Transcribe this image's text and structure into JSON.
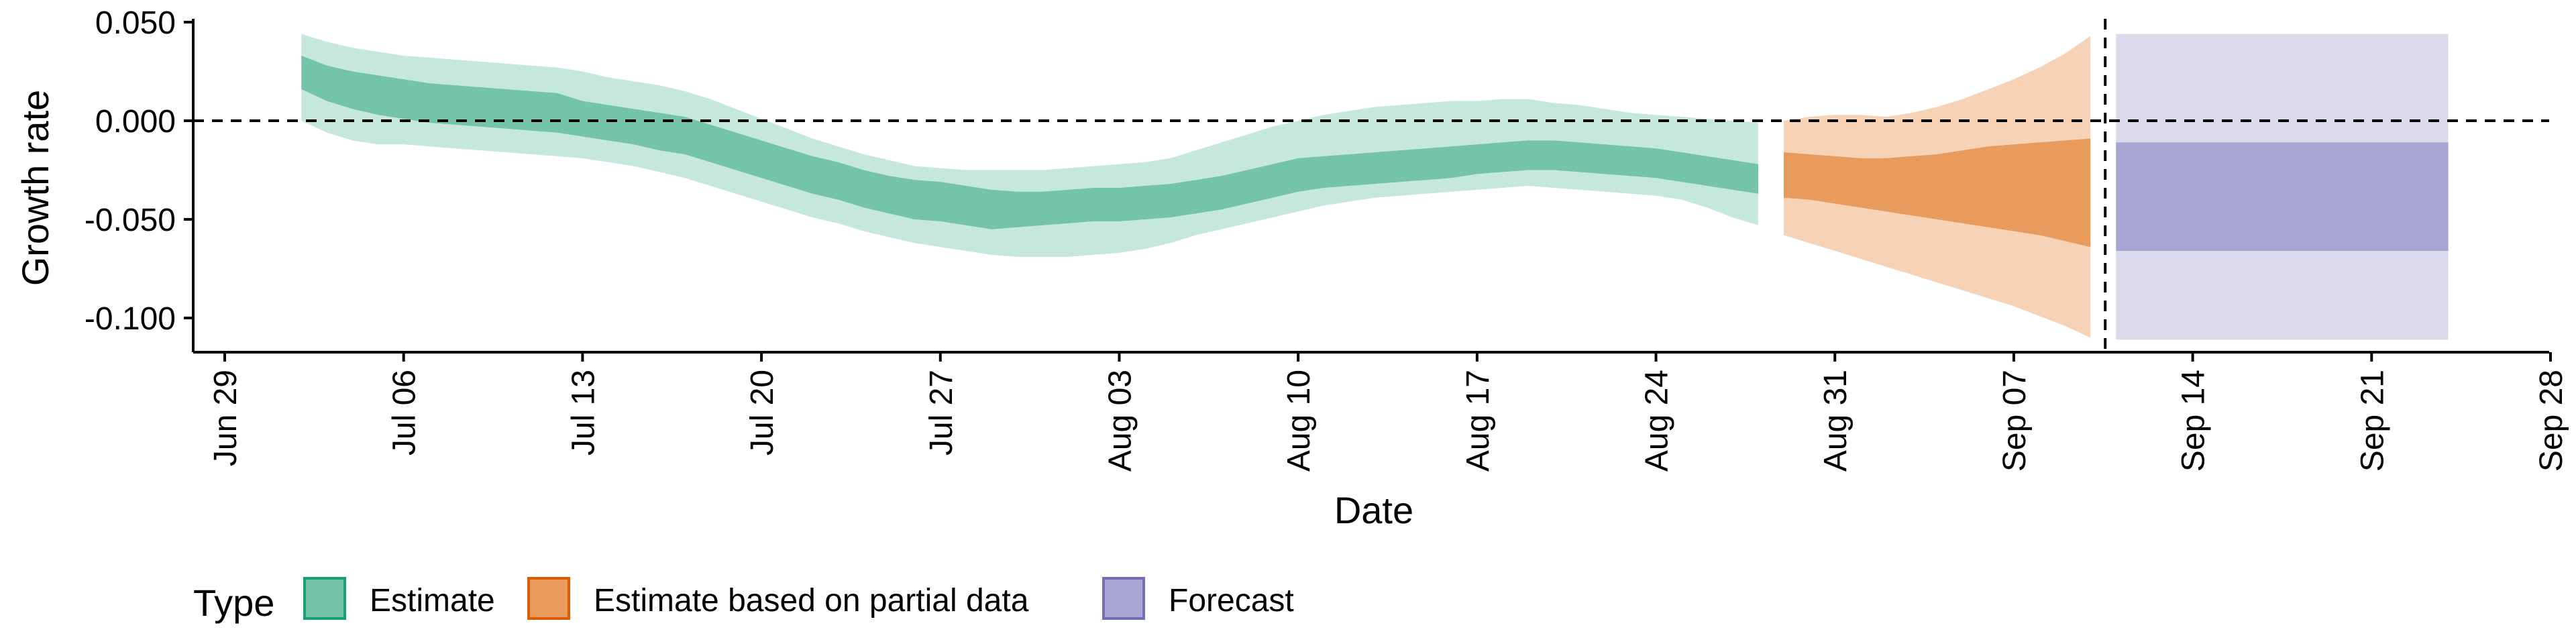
{
  "chart_data": {
    "type": "area",
    "xlabel": "Date",
    "ylabel": "Growth rate",
    "x_axis": {
      "start_date": "2020-06-29",
      "end_date": "2020-09-28",
      "tick_dates": [
        "2020-06-29",
        "2020-07-06",
        "2020-07-13",
        "2020-07-20",
        "2020-07-27",
        "2020-08-03",
        "2020-08-10",
        "2020-08-17",
        "2020-08-24",
        "2020-08-31",
        "2020-09-07",
        "2020-09-14",
        "2020-09-21",
        "2020-09-28"
      ],
      "tick_labels": [
        "Jun 29",
        "Jul 06",
        "Jul 13",
        "Jul 20",
        "Jul 27",
        "Aug 03",
        "Aug 10",
        "Aug 17",
        "Aug 24",
        "Aug 31",
        "Sep 07",
        "Sep 14",
        "Sep 21",
        "Sep 28"
      ]
    },
    "y_axis": {
      "range": [
        -0.118,
        0.05
      ],
      "ticks": [
        0.05,
        0.0,
        -0.05,
        -0.1
      ],
      "tick_labels": [
        "0.050",
        "0.000",
        "-0.050",
        "-0.100"
      ]
    },
    "reference_lines": [
      {
        "orientation": "horizontal",
        "y": 0.0,
        "style": "dashed"
      },
      {
        "orientation": "vertical",
        "x": "2020-09-10",
        "style": "dashed"
      }
    ],
    "grid": false,
    "legend": {
      "position": "bottom-left",
      "title": "Type",
      "entries": [
        "Estimate",
        "Estimate based on partial data",
        "Forecast"
      ]
    },
    "series": [
      {
        "name": "Estimate",
        "color": "#1b9e77",
        "x": [
          "2020-07-02",
          "2020-07-03",
          "2020-07-04",
          "2020-07-05",
          "2020-07-06",
          "2020-07-07",
          "2020-07-08",
          "2020-07-09",
          "2020-07-10",
          "2020-07-11",
          "2020-07-12",
          "2020-07-13",
          "2020-07-14",
          "2020-07-15",
          "2020-07-16",
          "2020-07-17",
          "2020-07-18",
          "2020-07-19",
          "2020-07-20",
          "2020-07-21",
          "2020-07-22",
          "2020-07-23",
          "2020-07-24",
          "2020-07-25",
          "2020-07-26",
          "2020-07-27",
          "2020-07-28",
          "2020-07-29",
          "2020-07-30",
          "2020-07-31",
          "2020-08-01",
          "2020-08-02",
          "2020-08-03",
          "2020-08-04",
          "2020-08-05",
          "2020-08-06",
          "2020-08-07",
          "2020-08-08",
          "2020-08-09",
          "2020-08-10",
          "2020-08-11",
          "2020-08-12",
          "2020-08-13",
          "2020-08-14",
          "2020-08-15",
          "2020-08-16",
          "2020-08-17",
          "2020-08-18",
          "2020-08-19",
          "2020-08-20",
          "2020-08-21",
          "2020-08-22",
          "2020-08-23",
          "2020-08-24",
          "2020-08-25",
          "2020-08-26",
          "2020-08-27",
          "2020-08-28"
        ],
        "median": [
          0.026,
          0.02,
          0.016,
          0.013,
          0.011,
          0.009,
          0.008,
          0.007,
          0.006,
          0.005,
          0.004,
          0.002,
          0.0,
          -0.002,
          -0.005,
          -0.007,
          -0.011,
          -0.015,
          -0.019,
          -0.023,
          -0.027,
          -0.03,
          -0.034,
          -0.037,
          -0.04,
          -0.041,
          -0.043,
          -0.045,
          -0.047,
          -0.046,
          -0.045,
          -0.044,
          -0.044,
          -0.043,
          -0.042,
          -0.04,
          -0.038,
          -0.035,
          -0.032,
          -0.029,
          -0.027,
          -0.026,
          -0.025,
          -0.024,
          -0.023,
          -0.022,
          -0.02,
          -0.019,
          -0.018,
          -0.018,
          -0.019,
          -0.02,
          -0.021,
          -0.022,
          -0.024,
          -0.026,
          -0.028,
          -0.03
        ],
        "inner_lower": [
          0.016,
          0.01,
          0.006,
          0.003,
          0.001,
          -0.001,
          -0.002,
          -0.003,
          -0.004,
          -0.005,
          -0.006,
          -0.008,
          -0.01,
          -0.012,
          -0.015,
          -0.017,
          -0.021,
          -0.025,
          -0.029,
          -0.033,
          -0.037,
          -0.04,
          -0.044,
          -0.047,
          -0.05,
          -0.051,
          -0.053,
          -0.055,
          -0.054,
          -0.053,
          -0.052,
          -0.051,
          -0.051,
          -0.05,
          -0.049,
          -0.047,
          -0.045,
          -0.042,
          -0.039,
          -0.036,
          -0.034,
          -0.033,
          -0.032,
          -0.031,
          -0.03,
          -0.029,
          -0.027,
          -0.026,
          -0.025,
          -0.025,
          -0.026,
          -0.027,
          -0.028,
          -0.029,
          -0.031,
          -0.033,
          -0.035,
          -0.037
        ],
        "inner_upper": [
          0.033,
          0.028,
          0.025,
          0.023,
          0.021,
          0.019,
          0.018,
          0.017,
          0.016,
          0.015,
          0.014,
          0.01,
          0.008,
          0.006,
          0.004,
          0.002,
          -0.002,
          -0.006,
          -0.01,
          -0.014,
          -0.018,
          -0.021,
          -0.025,
          -0.028,
          -0.03,
          -0.031,
          -0.033,
          -0.035,
          -0.036,
          -0.036,
          -0.035,
          -0.034,
          -0.034,
          -0.033,
          -0.032,
          -0.03,
          -0.028,
          -0.025,
          -0.022,
          -0.019,
          -0.018,
          -0.017,
          -0.016,
          -0.015,
          -0.014,
          -0.013,
          -0.012,
          -0.011,
          -0.01,
          -0.01,
          -0.011,
          -0.012,
          -0.013,
          -0.014,
          -0.016,
          -0.018,
          -0.02,
          -0.022
        ],
        "outer_lower": [
          0.0,
          -0.006,
          -0.01,
          -0.012,
          -0.012,
          -0.013,
          -0.014,
          -0.015,
          -0.016,
          -0.017,
          -0.018,
          -0.019,
          -0.021,
          -0.023,
          -0.026,
          -0.029,
          -0.033,
          -0.037,
          -0.041,
          -0.045,
          -0.049,
          -0.052,
          -0.056,
          -0.059,
          -0.062,
          -0.064,
          -0.066,
          -0.068,
          -0.069,
          -0.069,
          -0.069,
          -0.068,
          -0.067,
          -0.065,
          -0.062,
          -0.058,
          -0.055,
          -0.052,
          -0.049,
          -0.046,
          -0.043,
          -0.041,
          -0.039,
          -0.038,
          -0.037,
          -0.036,
          -0.035,
          -0.034,
          -0.033,
          -0.034,
          -0.035,
          -0.036,
          -0.037,
          -0.038,
          -0.04,
          -0.044,
          -0.049,
          -0.053
        ],
        "outer_upper": [
          0.044,
          0.04,
          0.037,
          0.035,
          0.033,
          0.032,
          0.031,
          0.03,
          0.029,
          0.028,
          0.027,
          0.025,
          0.022,
          0.02,
          0.018,
          0.015,
          0.011,
          0.006,
          0.001,
          -0.004,
          -0.009,
          -0.013,
          -0.017,
          -0.02,
          -0.023,
          -0.024,
          -0.025,
          -0.025,
          -0.025,
          -0.025,
          -0.024,
          -0.023,
          -0.022,
          -0.021,
          -0.019,
          -0.015,
          -0.011,
          -0.007,
          -0.003,
          0.0,
          0.003,
          0.005,
          0.007,
          0.008,
          0.009,
          0.01,
          0.01,
          0.011,
          0.011,
          0.009,
          0.008,
          0.006,
          0.004,
          0.003,
          0.002,
          0.001,
          0.0,
          -0.001
        ]
      },
      {
        "name": "Estimate based on partial data",
        "color": "#d95f02",
        "x": [
          "2020-08-29",
          "2020-08-30",
          "2020-08-31",
          "2020-09-01",
          "2020-09-02",
          "2020-09-03",
          "2020-09-04",
          "2020-09-05",
          "2020-09-06",
          "2020-09-07",
          "2020-09-08",
          "2020-09-09",
          "2020-09-10"
        ],
        "median": [
          -0.031,
          -0.032,
          -0.033,
          -0.034,
          -0.035,
          -0.036,
          -0.037,
          -0.038,
          -0.039,
          -0.04,
          -0.041,
          -0.042,
          -0.043
        ],
        "inner_lower": [
          -0.039,
          -0.04,
          -0.042,
          -0.044,
          -0.046,
          -0.048,
          -0.05,
          -0.052,
          -0.054,
          -0.056,
          -0.058,
          -0.061,
          -0.064
        ],
        "inner_upper": [
          -0.016,
          -0.017,
          -0.018,
          -0.019,
          -0.019,
          -0.018,
          -0.017,
          -0.015,
          -0.013,
          -0.012,
          -0.011,
          -0.01,
          -0.009
        ],
        "outer_lower": [
          -0.058,
          -0.062,
          -0.066,
          -0.07,
          -0.074,
          -0.078,
          -0.082,
          -0.086,
          -0.09,
          -0.094,
          -0.099,
          -0.104,
          -0.11
        ],
        "outer_upper": [
          0.0,
          0.002,
          0.003,
          0.003,
          0.002,
          0.004,
          0.007,
          0.011,
          0.016,
          0.021,
          0.027,
          0.034,
          0.043
        ]
      },
      {
        "name": "Forecast",
        "color": "#7570b3",
        "x": [
          "2020-09-11",
          "2020-09-24"
        ],
        "inner_lower": [
          -0.066,
          -0.066
        ],
        "inner_upper": [
          -0.011,
          -0.011
        ],
        "outer_lower": [
          -0.111,
          -0.111
        ],
        "outer_upper": [
          0.044,
          0.044
        ]
      }
    ]
  },
  "style": {
    "estimate_inner": "#74c4a9",
    "estimate_outer": "#c6e7dc",
    "partial_inner": "#e99a5d",
    "partial_outer": "#f6d3b7",
    "forecast_inner": "#a8a5d2",
    "forecast_outer": "#dbdaec",
    "axis_color": "#000000"
  }
}
